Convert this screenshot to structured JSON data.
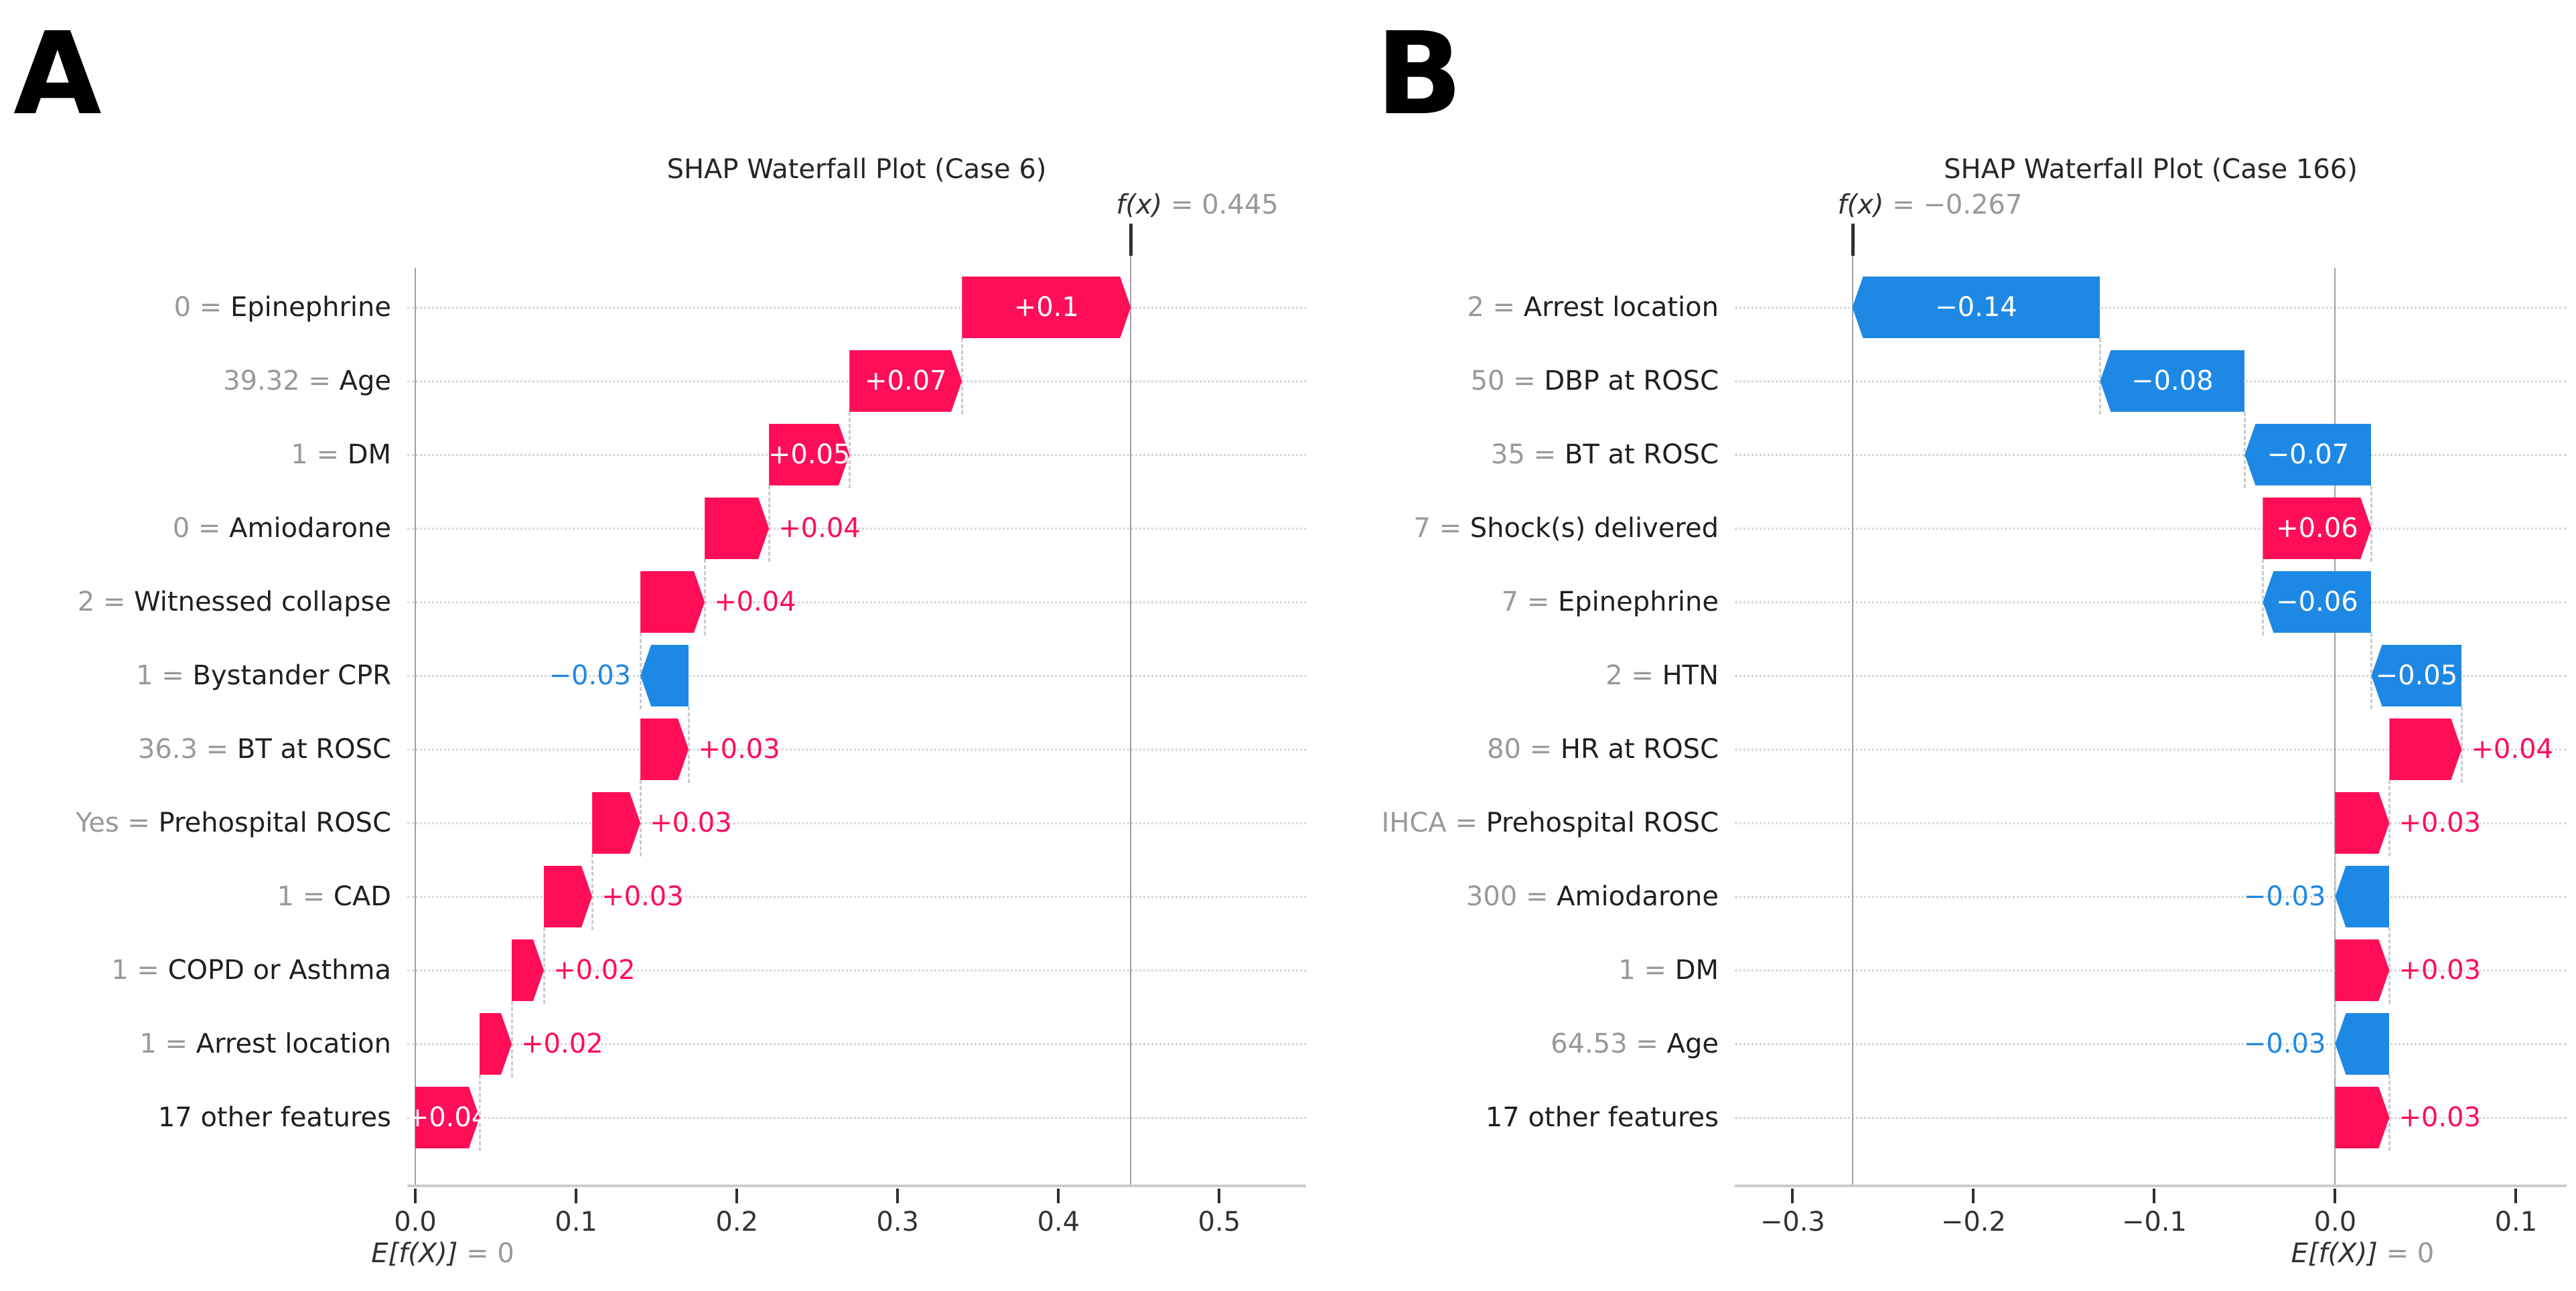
{
  "figure": {
    "background": "#ffffff",
    "colors": {
      "positive": "#ff0d57",
      "negative": "#1e88e5",
      "text_dark": "#303030",
      "text_muted": "#999999",
      "axis_line": "#cccccc",
      "gridline": "#d8d8d8",
      "connector": "#cccccc",
      "ref_line": "#a0a0a0",
      "bar_label_inside": "#ffffff",
      "panel_letter_color": "#000000"
    }
  },
  "chart_data": [
    {
      "type": "bar",
      "variant": "shap-waterfall",
      "panel_letter": "A",
      "title": "SHAP Waterfall Plot (Case 6)",
      "base_value": 0,
      "fx_value": 0.445,
      "fx_label_prefix": "f(x)",
      "fx_label_rest": " = 0.445",
      "expected_label_prefix": "E[f(X)]",
      "expected_label_rest": " = 0",
      "xlim": [
        -0.005,
        0.554
      ],
      "grid": true,
      "legend": "none",
      "x_ticks": [
        {
          "v": 0.0,
          "label": "0.0"
        },
        {
          "v": 0.1,
          "label": "0.1"
        },
        {
          "v": 0.2,
          "label": "0.2"
        },
        {
          "v": 0.3,
          "label": "0.3"
        },
        {
          "v": 0.4,
          "label": "0.4"
        },
        {
          "v": 0.5,
          "label": "0.5"
        }
      ],
      "rows": [
        {
          "value": "0",
          "name": "Epinephrine",
          "shap": 0.1,
          "label": "+0.1",
          "label_pos": "inside"
        },
        {
          "value": "39.32",
          "name": "Age",
          "shap": 0.07,
          "label": "+0.07",
          "label_pos": "inside"
        },
        {
          "value": "1",
          "name": "DM",
          "shap": 0.05,
          "label": "+0.05",
          "label_pos": "inside"
        },
        {
          "value": "0",
          "name": "Amiodarone",
          "shap": 0.04,
          "label": "+0.04",
          "label_pos": "outside"
        },
        {
          "value": "2",
          "name": "Witnessed collapse",
          "shap": 0.04,
          "label": "+0.04",
          "label_pos": "outside"
        },
        {
          "value": "1",
          "name": "Bystander CPR",
          "shap": -0.03,
          "label": "−0.03",
          "label_pos": "outside"
        },
        {
          "value": "36.3",
          "name": "BT at ROSC",
          "shap": 0.03,
          "label": "+0.03",
          "label_pos": "outside"
        },
        {
          "value": "Yes",
          "name": "Prehospital ROSC",
          "shap": 0.03,
          "label": "+0.03",
          "label_pos": "outside"
        },
        {
          "value": "1",
          "name": "CAD",
          "shap": 0.03,
          "label": "+0.03",
          "label_pos": "outside"
        },
        {
          "value": "1",
          "name": "COPD or Asthma",
          "shap": 0.02,
          "label": "+0.02",
          "label_pos": "outside"
        },
        {
          "value": "1",
          "name": "Arrest location",
          "shap": 0.02,
          "label": "+0.02",
          "label_pos": "outside"
        },
        {
          "value": "",
          "name": "17 other features",
          "shap": 0.04,
          "label": "+0.04",
          "label_pos": "inside"
        }
      ]
    },
    {
      "type": "bar",
      "variant": "shap-waterfall",
      "panel_letter": "B",
      "title": "SHAP Waterfall Plot (Case 166)",
      "base_value": 0,
      "fx_value": -0.267,
      "fx_label_prefix": "f(x)",
      "fx_label_rest": " = −0.267",
      "expected_label_prefix": "E[f(X)]",
      "expected_label_rest": " = 0",
      "xlim": [
        -0.332,
        0.128
      ],
      "grid": true,
      "legend": "none",
      "x_ticks": [
        {
          "v": -0.3,
          "label": "−0.3"
        },
        {
          "v": -0.2,
          "label": "−0.2"
        },
        {
          "v": -0.1,
          "label": "−0.1"
        },
        {
          "v": 0.0,
          "label": "0.0"
        },
        {
          "v": 0.1,
          "label": "0.1"
        }
      ],
      "rows": [
        {
          "value": "2",
          "name": "Arrest location",
          "shap": -0.14,
          "label": "−0.14",
          "label_pos": "inside"
        },
        {
          "value": "50",
          "name": "DBP at ROSC",
          "shap": -0.08,
          "label": "−0.08",
          "label_pos": "inside"
        },
        {
          "value": "35",
          "name": "BT at ROSC",
          "shap": -0.07,
          "label": "−0.07",
          "label_pos": "inside"
        },
        {
          "value": "7",
          "name": "Shock(s) delivered",
          "shap": 0.06,
          "label": "+0.06",
          "label_pos": "inside"
        },
        {
          "value": "7",
          "name": "Epinephrine",
          "shap": -0.06,
          "label": "−0.06",
          "label_pos": "inside"
        },
        {
          "value": "2",
          "name": "HTN",
          "shap": -0.05,
          "label": "−0.05",
          "label_pos": "inside"
        },
        {
          "value": "80",
          "name": "HR at ROSC",
          "shap": 0.04,
          "label": "+0.04",
          "label_pos": "outside"
        },
        {
          "value": "IHCA",
          "name": "Prehospital ROSC",
          "shap": 0.03,
          "label": "+0.03",
          "label_pos": "outside"
        },
        {
          "value": "300",
          "name": "Amiodarone",
          "shap": -0.03,
          "label": "−0.03",
          "label_pos": "outside"
        },
        {
          "value": "1",
          "name": "DM",
          "shap": 0.03,
          "label": "+0.03",
          "label_pos": "outside"
        },
        {
          "value": "64.53",
          "name": "Age",
          "shap": -0.03,
          "label": "−0.03",
          "label_pos": "outside"
        },
        {
          "value": "",
          "name": "17 other features",
          "shap": 0.03,
          "label": "+0.03",
          "label_pos": "outside"
        }
      ]
    }
  ]
}
